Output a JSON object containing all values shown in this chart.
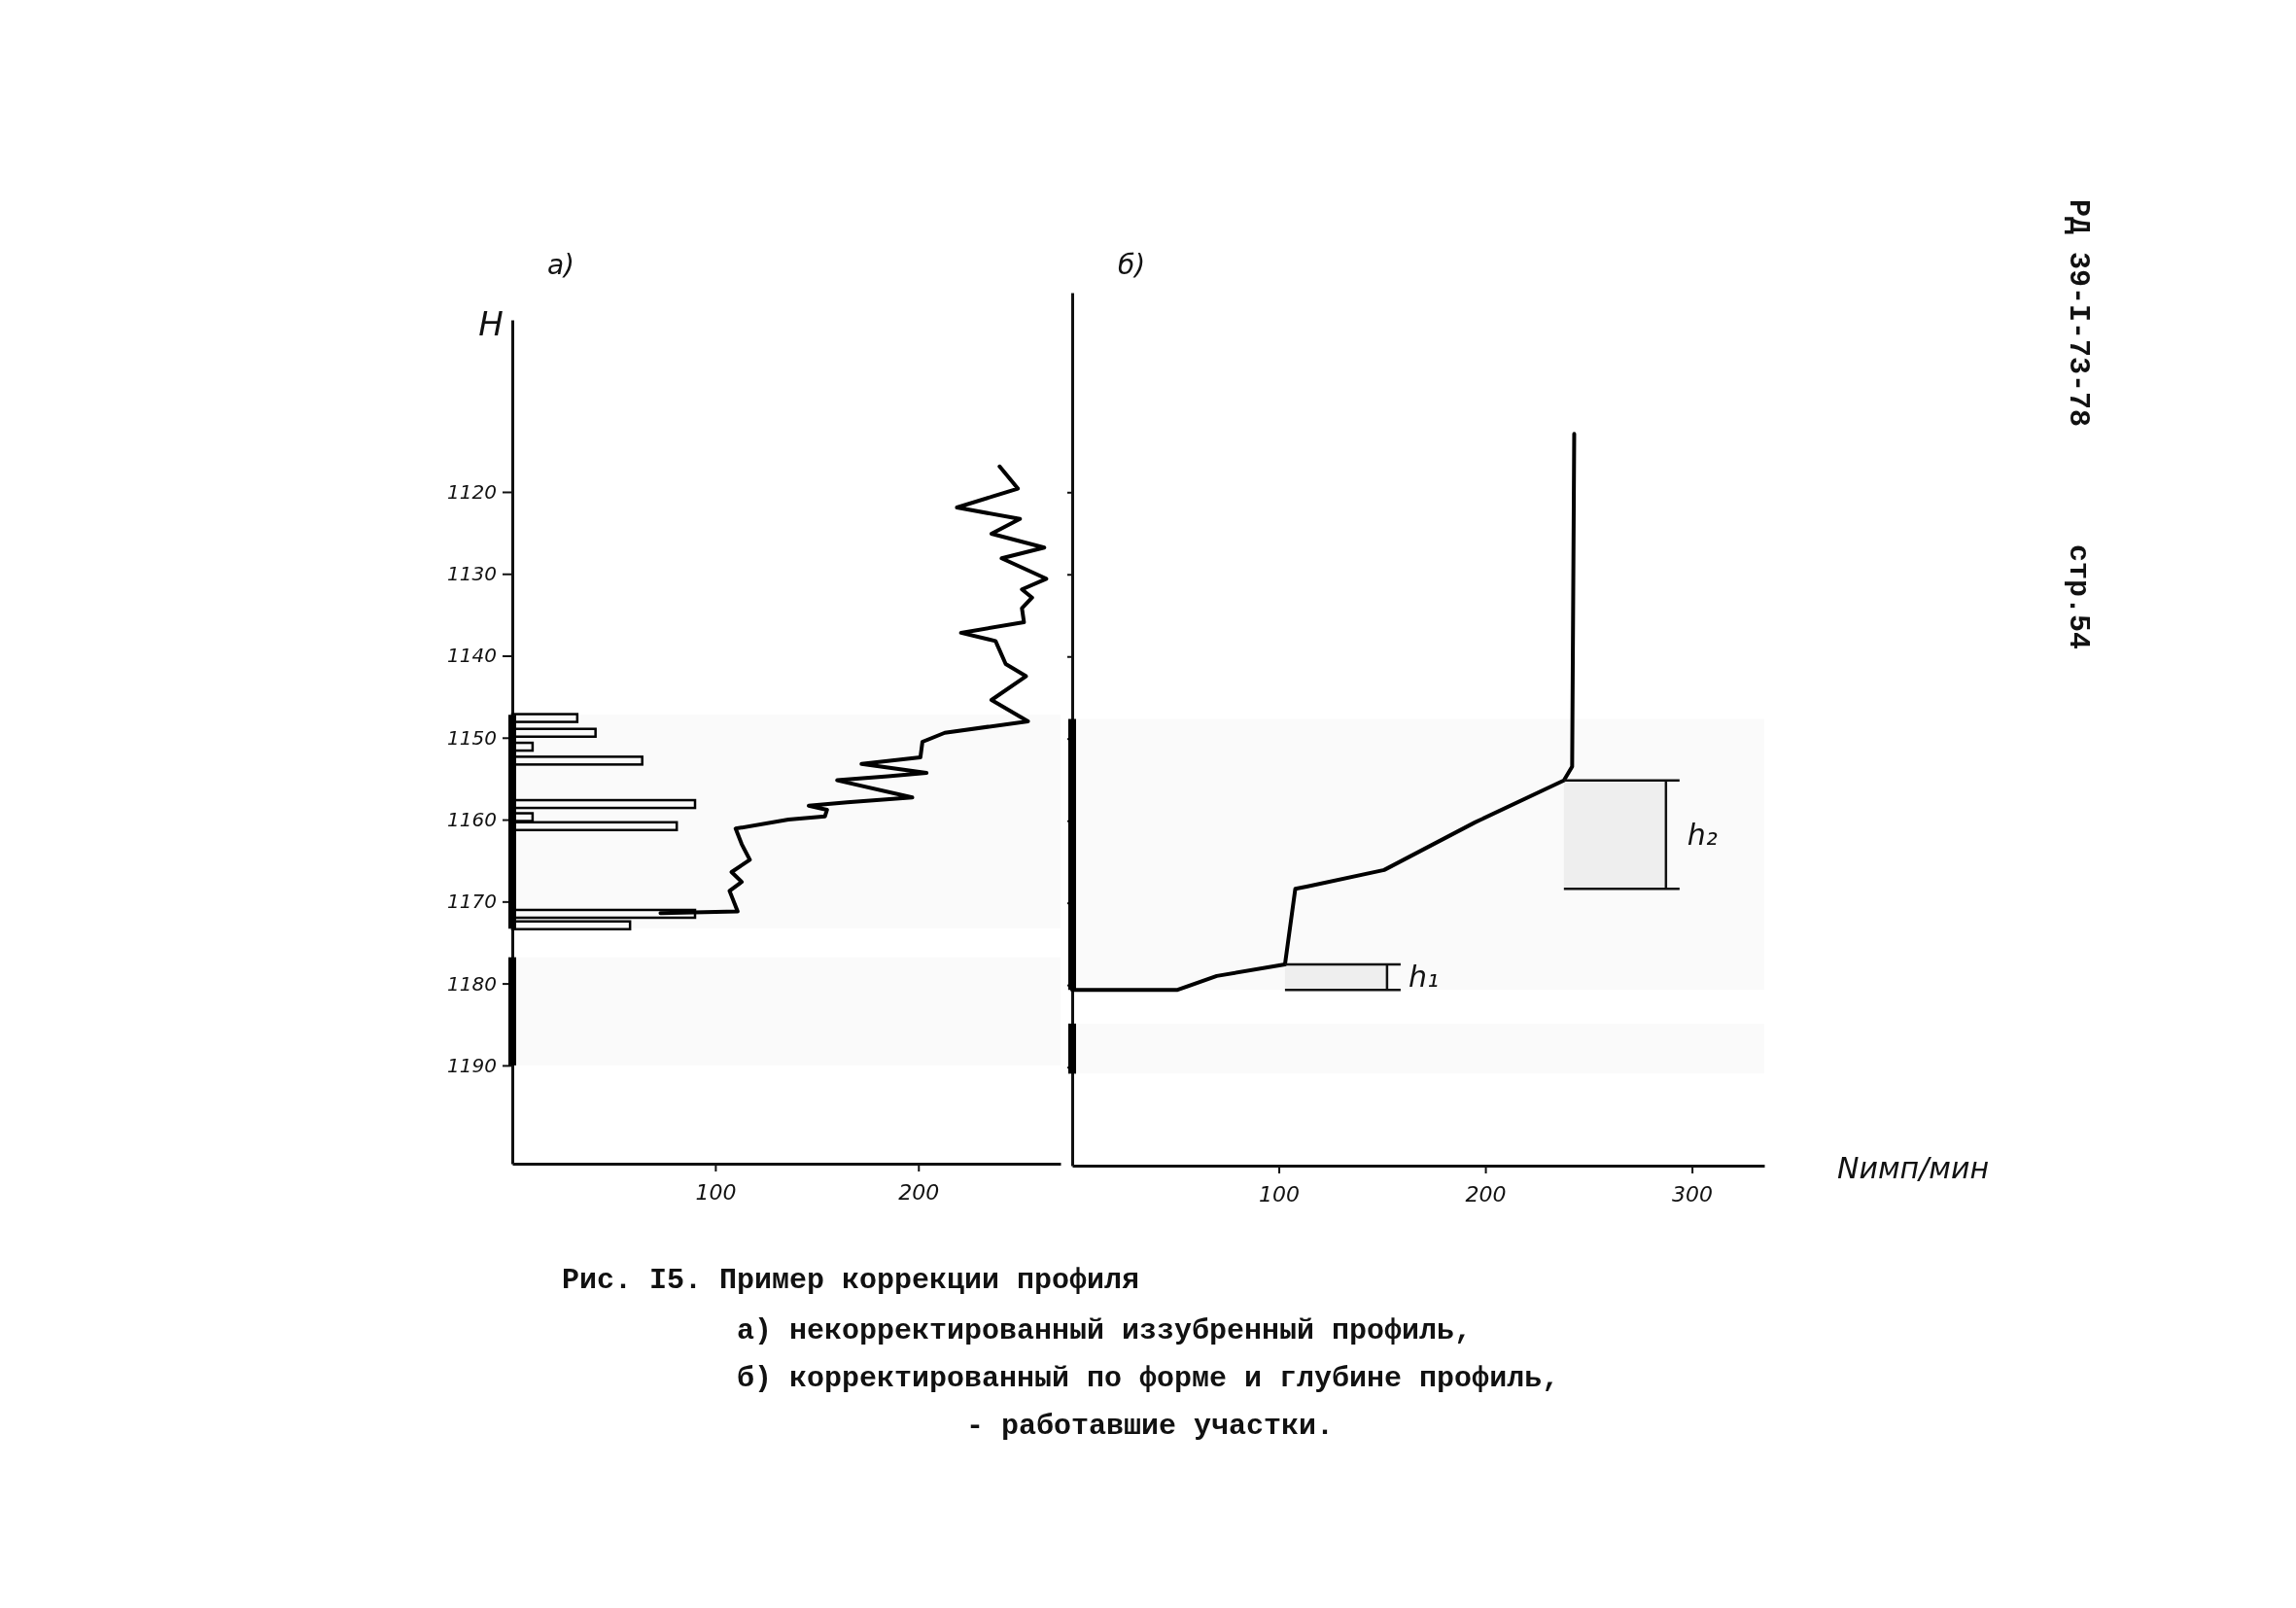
{
  "chart_data": [
    {
      "type": "bar",
      "title": "а)",
      "ylabel": "H",
      "orientation": "horizontal",
      "xlim": [
        0,
        270
      ],
      "xticks": [
        100,
        200
      ],
      "ylim": [
        1202,
        1099
      ],
      "yticks": [
        1120,
        1130,
        1140,
        1150,
        1160,
        1170,
        1180,
        1190
      ],
      "series": [
        {
          "color": "#000000",
          "x": [
            1147.6,
            1149.4,
            1151.1,
            1152.8,
            1158.1,
            1159.7,
            1160.8,
            1171.5,
            1172.9
          ],
          "values": [
            32,
            41,
            10,
            64,
            90,
            10,
            81,
            90,
            58
          ]
        },
        {
          "type": "line",
          "color": "#000000",
          "x": [
            1171.4,
            1171.2,
            1168.7,
            1167.6,
            1166.4,
            1164.9,
            1163.0,
            1161.1,
            1160.0,
            1159.6,
            1158.8,
            1158.3,
            1157.9,
            1157.3,
            1155.2,
            1154.7,
            1154.3,
            1153.2,
            1152.4,
            1150.5,
            1149.4,
            1148.0,
            1145.4,
            1142.5,
            1141.0,
            1138.2,
            1137.2,
            1135.9,
            1134.2,
            1132.9,
            1131.9,
            1130.6,
            1128.1,
            1126.8,
            1125.1,
            1123.3,
            1121.9,
            1119.6,
            1116.9
          ],
          "values": [
            73,
            111,
            107,
            113,
            108,
            117,
            113,
            110,
            136,
            154,
            155,
            146,
            165,
            197,
            160,
            185,
            204,
            172,
            201,
            202,
            213,
            254,
            236,
            253,
            243,
            238,
            221,
            252,
            251,
            256,
            251,
            263,
            241,
            262,
            236,
            250,
            219,
            249,
            240
          ]
        }
      ],
      "bands": [
        {
          "axis": "y",
          "from": 1147.2,
          "to": 1173.3,
          "color": "#000000"
        },
        {
          "axis": "y",
          "from": 1176.8,
          "to": 1190,
          "color": "#000000"
        }
      ],
      "line_style": "solid",
      "marker": "none",
      "annotations": [
        "Рис. I5. Пример коррекции профиля",
        "а) некорректированный иззубренный профиль,",
        "б) корректированный по форме и глубине профиль,",
        "- работавшие участки.",
        "РД 39-I-73-78",
        "стр.54"
      ]
    },
    {
      "type": "line",
      "title": "б)",
      "xlabel": "Nимп/мин",
      "orientation": "horizontal",
      "xlim": [
        0,
        335
      ],
      "xticks": [
        100,
        200,
        300
      ],
      "ylim": [
        1202,
        1095.7
      ],
      "yticks": [
        1120,
        1130,
        1140,
        1150,
        1160,
        1170,
        1180,
        1190
      ],
      "tick_labels": "x",
      "series": [
        {
          "color": "#000000",
          "x": [
            1180.6,
            1180.6,
            1178.9,
            1177.5,
            1168.3,
            1168.0,
            1166.0,
            1160.2,
            1155.1,
            1153.4,
            1112.9
          ],
          "values": [
            0,
            51,
            70,
            103,
            108,
            114,
            151,
            195,
            238,
            242,
            243
          ]
        }
      ],
      "bands": [
        {
          "axis": "y",
          "from": 1147.6,
          "to": 1180.6,
          "color": "#000000"
        },
        {
          "axis": "y",
          "from": 1184.7,
          "to": 1190.8,
          "color": "#000000"
        },
        {
          "axis": "y",
          "from": 1177.5,
          "to": 1180.6,
          "label": "h₁"
        },
        {
          "axis": "y",
          "from": 1155.1,
          "to": 1168.3,
          "label": "h₂"
        }
      ],
      "line_style": "solid",
      "marker": "none"
    }
  ]
}
